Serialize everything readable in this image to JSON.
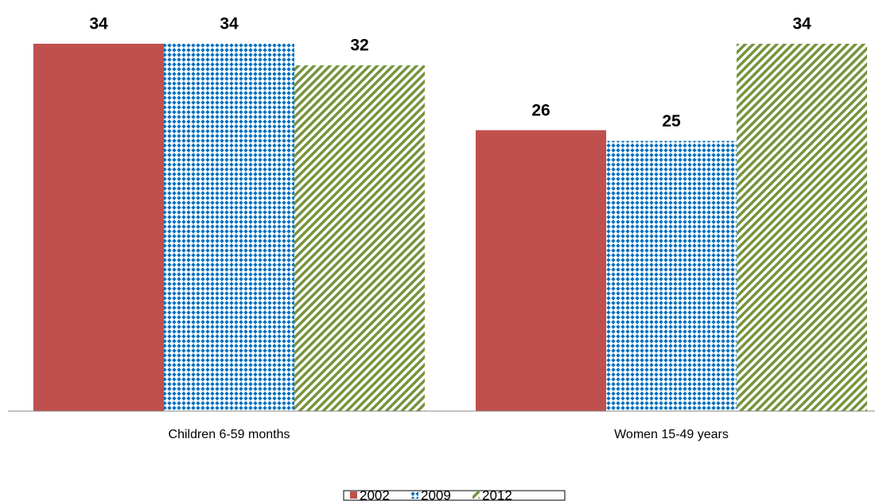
{
  "chart_data": {
    "type": "bar",
    "categories": [
      "Children 6-59 months",
      "Women 15-49 years"
    ],
    "series": [
      {
        "name": "2002",
        "color": "#c0504d",
        "pattern": "solid",
        "values": [
          34,
          26
        ]
      },
      {
        "name": "2009",
        "color": "#0070c0",
        "pattern": "dots",
        "values": [
          34,
          25
        ]
      },
      {
        "name": "2012",
        "color": "#77933c",
        "pattern": "diagonal",
        "values": [
          32,
          34
        ]
      }
    ]
  }
}
